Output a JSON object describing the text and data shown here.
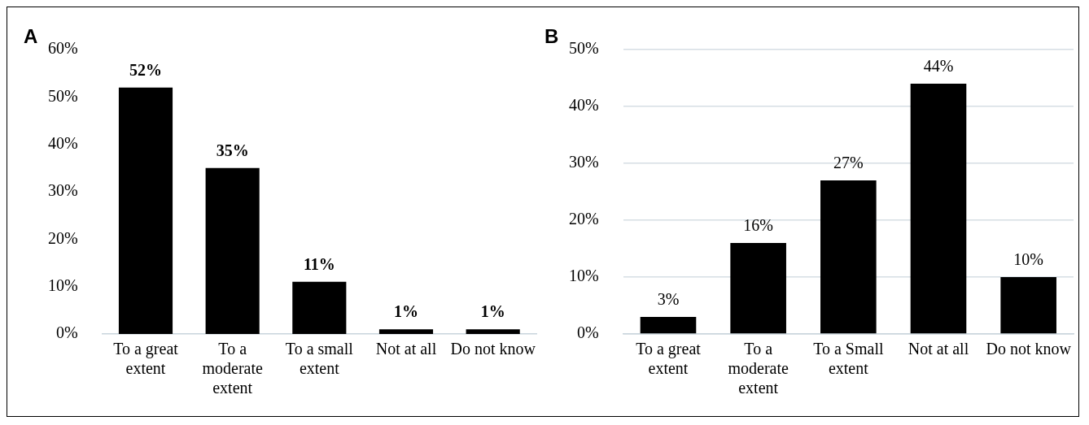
{
  "chart_data": [
    {
      "type": "bar",
      "title": "A",
      "categories": [
        "To a great extent",
        "To a moderate extent",
        "To a small extent",
        "Not at all",
        "Do not know"
      ],
      "values": [
        52,
        35,
        11,
        1,
        1
      ],
      "color": "#000000",
      "value_labels": [
        "52%",
        "35%",
        "11%",
        "1%",
        "1%"
      ],
      "ylim": [
        0,
        60
      ],
      "yticks": [
        {
          "value": 0,
          "label": "0%"
        },
        {
          "value": 10,
          "label": "10%"
        },
        {
          "value": 20,
          "label": "20%"
        },
        {
          "value": 30,
          "label": "30%"
        },
        {
          "value": 40,
          "label": "40%"
        },
        {
          "value": 50,
          "label": "50%"
        },
        {
          "value": 60,
          "label": "60%"
        }
      ],
      "grid": false
    },
    {
      "type": "bar",
      "title": "B",
      "categories": [
        "To a great extent",
        "To a moderate extent",
        "To a Small extent",
        "Not at all",
        "Do not know"
      ],
      "values": [
        3,
        16,
        27,
        44,
        10
      ],
      "color": "#000000",
      "value_labels": [
        "3%",
        "16%",
        "27%",
        "44%",
        "10%"
      ],
      "ylim": [
        0,
        50
      ],
      "yticks": [
        {
          "value": 0,
          "label": "0%"
        },
        {
          "value": 10,
          "label": "10%"
        },
        {
          "value": 20,
          "label": "20%"
        },
        {
          "value": 30,
          "label": "30%"
        },
        {
          "value": 40,
          "label": "40%"
        },
        {
          "value": 50,
          "label": "50%"
        }
      ],
      "grid": "y"
    }
  ]
}
